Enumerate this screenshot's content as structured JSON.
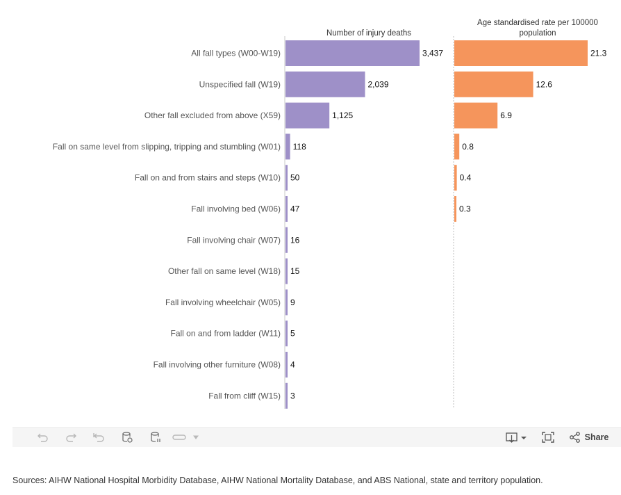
{
  "chart_data": {
    "type": "bar",
    "orientation": "horizontal",
    "categories": [
      "All fall types (W00-W19)",
      "Unspecified fall (W19)",
      "Other fall excluded from above (X59)",
      "Fall on same level from slipping, tripping and stumbling (W01)",
      "Fall on and from stairs and steps (W10)",
      "Fall involving bed (W06)",
      "Fall involving chair (W07)",
      "Other fall on same level (W18)",
      "Fall involving wheelchair (W05)",
      "Fall on and from ladder (W11)",
      "Fall involving other furniture (W08)",
      "Fall from cliff (W15)"
    ],
    "panels": [
      {
        "header": "Number of injury deaths",
        "color": "#9e90c8",
        "max": 3437,
        "values": [
          3437,
          2039,
          1125,
          118,
          50,
          47,
          16,
          15,
          9,
          5,
          4,
          3
        ],
        "labels": [
          "3,437",
          "2,039",
          "1,125",
          "118",
          "50",
          "47",
          "16",
          "15",
          "9",
          "5",
          "4",
          "3"
        ]
      },
      {
        "header_lines": [
          "Age standardised rate per 100000",
          "population"
        ],
        "color": "#f5955c",
        "max": 21.3,
        "values": [
          21.3,
          12.6,
          6.9,
          0.8,
          0.4,
          0.3,
          null,
          null,
          null,
          null,
          null,
          null
        ],
        "labels": [
          "21.3",
          "12.6",
          "6.9",
          "0.8",
          "0.4",
          "0.3",
          "",
          "",
          "",
          "",
          "",
          ""
        ]
      }
    ]
  },
  "toolbar": {
    "undo_icon": "undo-icon",
    "redo_icon": "redo-icon",
    "revert_icon": "revert-icon",
    "refresh_icon": "refresh-data-icon",
    "pause_icon": "pause-updates-icon",
    "view_icon": "custom-view-icon",
    "download_icon": "download-icon",
    "fullscreen_icon": "fullscreen-icon",
    "share_icon": "share-icon",
    "share_label": "Share"
  },
  "sources": "Sources: AIHW National Hospital Morbidity Database, AIHW National Mortality Database, and ABS National, state and territory population."
}
